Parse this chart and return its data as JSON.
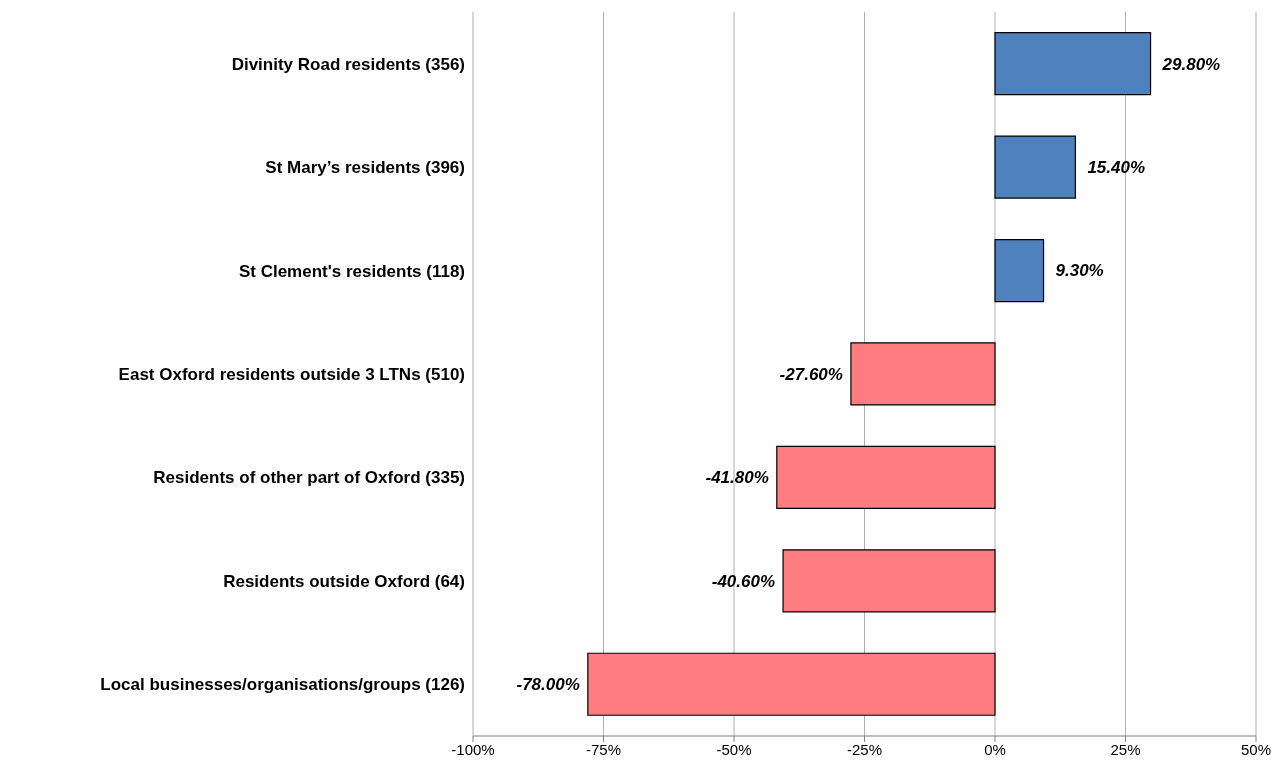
{
  "chart_data": {
    "type": "bar",
    "orientation": "horizontal",
    "categories": [
      "Divinity Road residents (356)",
      "St Mary’s residents (396)",
      "St Clement's residents (118)",
      "East Oxford residents outside 3 LTNs (510)",
      "Residents of other part of Oxford (335)",
      "Residents outside Oxford  (64)",
      "Local businesses/organisations/groups (126)"
    ],
    "values": [
      29.8,
      15.4,
      9.3,
      -27.6,
      -41.8,
      -40.6,
      -78.0
    ],
    "colors": [
      "#4f81bd",
      "#4f81bd",
      "#4f81bd",
      "#ff7c80",
      "#ff7c80",
      "#ff7c80",
      "#ff7c80"
    ],
    "value_labels": [
      "29.80%",
      "15.40%",
      "9.30%",
      "-27.60%",
      "-41.80%",
      "-40.60%",
      "-78.00%"
    ],
    "xlim": [
      -100,
      50
    ],
    "xticks": [
      {
        "value": -100,
        "label": "-100%"
      },
      {
        "value": -75,
        "label": "-75%"
      },
      {
        "value": -50,
        "label": "-50%"
      },
      {
        "value": -25,
        "label": "-25%"
      },
      {
        "value": 0,
        "label": "0%"
      },
      {
        "value": 25,
        "label": "25%"
      },
      {
        "value": 50,
        "label": "50%"
      }
    ],
    "grid": "x"
  }
}
